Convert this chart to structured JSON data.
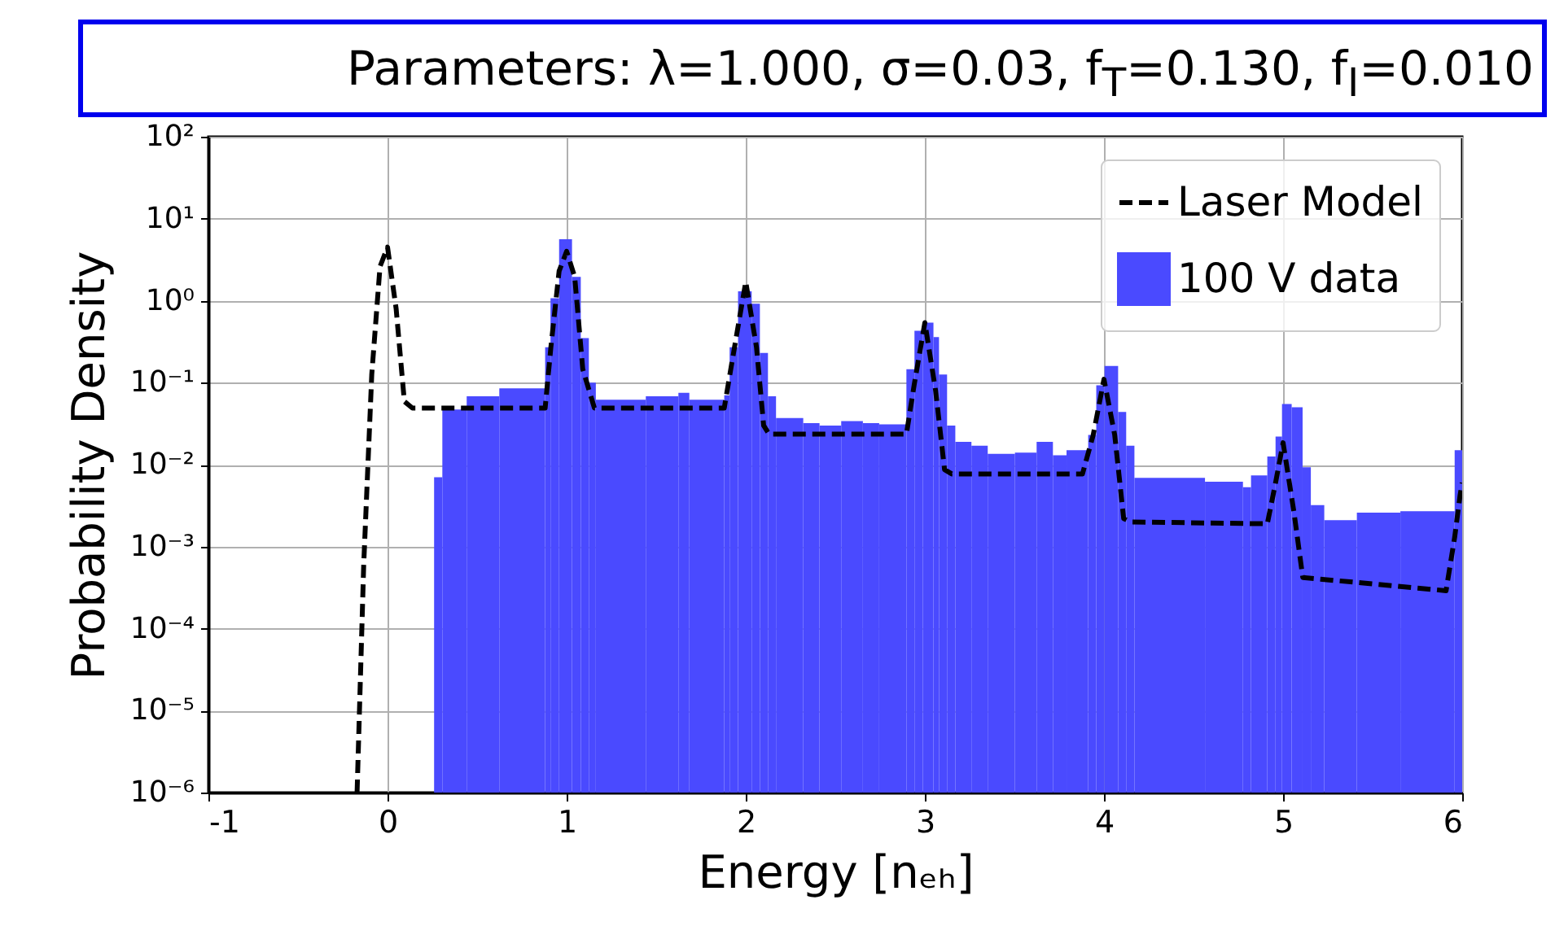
{
  "chart_data": {
    "type": "histogram",
    "title": "Parameters: λ=1.000, σ=0.03, f$_{T}$=0.130, f$_{I}$=0.010",
    "xlabel": "Energy [nₑₕ]",
    "ylabel": "Probability Density",
    "xlim": [
      -1,
      6
    ],
    "xticks": [
      -1,
      0,
      1,
      2,
      3,
      4,
      5,
      6
    ],
    "ylim": [
      1e-06,
      100
    ],
    "yticks": [
      {
        "value": 1e-06,
        "label": "10⁻⁶"
      },
      {
        "value": 1e-05,
        "label": "10⁻⁵"
      },
      {
        "value": 0.0001,
        "label": "10⁻⁴"
      },
      {
        "value": 0.001,
        "label": "10⁻³"
      },
      {
        "value": 0.01,
        "label": "10⁻²"
      },
      {
        "value": 0.1,
        "label": "10⁻¹"
      },
      {
        "value": 1,
        "label": "10⁰"
      },
      {
        "value": 10,
        "label": "10¹"
      },
      {
        "value": 100,
        "label": "10²"
      }
    ],
    "log": "y",
    "grid": true,
    "legend": "top right",
    "series": [
      {
        "name": "Laser Model",
        "type": "line",
        "color": "#000000",
        "line_style": "dashed",
        "x": [
          -0.17,
          -0.133,
          -0.088,
          -0.042,
          0,
          0.048,
          0.094,
          0.139,
          0.88,
          0.912,
          0.958,
          1.0,
          1.045,
          1.09,
          1.155,
          1.88,
          1.927,
          2.0,
          2.06,
          2.1,
          2.13,
          2.897,
          2.94,
          3.0,
          3.06,
          3.11,
          3.15,
          3.88,
          3.94,
          4.0,
          4.06,
          4.11,
          4.15,
          4.912,
          4.958,
          5.0,
          5.06,
          5.11,
          5.91,
          5.958,
          5.988,
          6.0
        ],
        "values": [
          1e-06,
          0.0006,
          0.126,
          2.6,
          4.5,
          0.8,
          0.059,
          0.049,
          0.049,
          0.27,
          2.3,
          4.0,
          1.95,
          0.146,
          0.049,
          0.049,
          0.2,
          1.7,
          0.27,
          0.03,
          0.0235,
          0.0235,
          0.093,
          0.54,
          0.08,
          0.0087,
          0.0077,
          0.0077,
          0.023,
          0.11,
          0.023,
          0.0022,
          0.002,
          0.0019,
          0.006,
          0.0185,
          0.0027,
          0.00042,
          0.00029,
          0.0013,
          0.0042,
          0.006
        ]
      },
      {
        "name": "100 V data",
        "color": "#4a4aff",
        "bins": [
          0.26,
          0.306,
          0.442,
          0.624,
          0.88,
          0.91,
          0.958,
          1.03,
          1.079,
          1.124,
          1.163,
          1.442,
          1.624,
          1.685,
          1.88,
          1.91,
          1.957,
          2.033,
          2.079,
          2.124,
          2.169,
          2.321,
          2.412,
          2.533,
          2.654,
          2.745,
          2.897,
          2.942,
          2.988,
          3.048,
          3.079,
          3.124,
          3.17,
          3.26,
          3.351,
          3.503,
          3.624,
          3.715,
          3.791,
          3.912,
          3.957,
          4.003,
          4.079,
          4.124,
          4.17,
          4.564,
          4.776,
          4.821,
          4.912,
          4.958,
          4.994,
          5.048,
          5.109,
          5.155,
          5.23,
          5.412,
          5.655,
          5.958,
          6.0
        ],
        "values": [
          0.007,
          0.047,
          0.068,
          0.085,
          0.27,
          1.07,
          5.6,
          1.95,
          0.35,
          0.1,
          0.062,
          0.068,
          0.075,
          0.062,
          0.07,
          0.27,
          1.3,
          0.92,
          0.23,
          0.068,
          0.037,
          0.032,
          0.03,
          0.034,
          0.032,
          0.031,
          0.146,
          0.43,
          0.54,
          0.36,
          0.126,
          0.03,
          0.019,
          0.017,
          0.0135,
          0.014,
          0.019,
          0.013,
          0.015,
          0.023,
          0.093,
          0.16,
          0.044,
          0.017,
          0.0069,
          0.0062,
          0.0053,
          0.0074,
          0.0126,
          0.022,
          0.055,
          0.05,
          0.0093,
          0.0032,
          0.0021,
          0.0026,
          0.0027,
          0.015
        ]
      }
    ]
  }
}
